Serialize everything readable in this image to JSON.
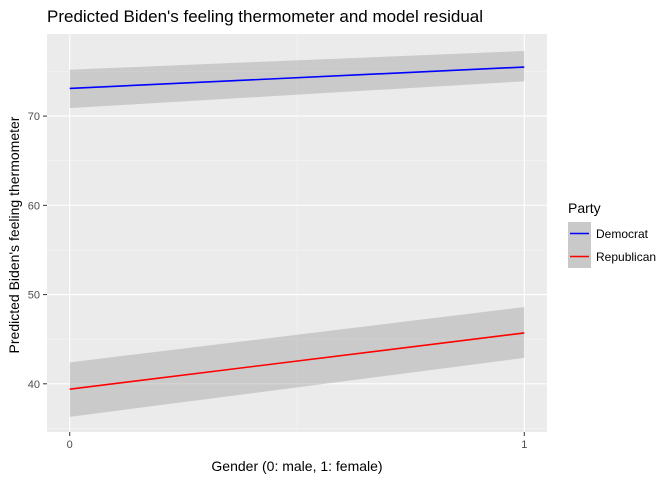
{
  "chart_data": {
    "type": "line",
    "title": "Predicted Biden's feeling thermometer and model residual",
    "xlabel": "Gender (0: male, 1: female)",
    "ylabel": "Predicted Biden's feeling thermometer",
    "xlim": [
      -0.05,
      1.05
    ],
    "ylim": [
      34.6,
      79.2
    ],
    "x_ticks": [
      0,
      1
    ],
    "x_tick_labels": [
      "0",
      "1"
    ],
    "y_ticks": [
      40,
      50,
      60,
      70
    ],
    "y_tick_labels": [
      "40",
      "50",
      "60",
      "70"
    ],
    "grid": true,
    "legend_title": "Party",
    "legend_position": "right",
    "series": [
      {
        "name": "Democrat",
        "color": "#0000ff",
        "x": [
          0,
          1
        ],
        "y": [
          73.1,
          75.5
        ],
        "ci_lower": [
          70.9,
          73.9
        ],
        "ci_upper": [
          75.2,
          77.3
        ]
      },
      {
        "name": "Republican",
        "color": "#ff0000",
        "x": [
          0,
          1
        ],
        "y": [
          39.4,
          45.7
        ],
        "ci_lower": [
          36.3,
          42.9
        ],
        "ci_upper": [
          42.4,
          48.6
        ]
      }
    ],
    "ribbon_color": "#999999"
  }
}
